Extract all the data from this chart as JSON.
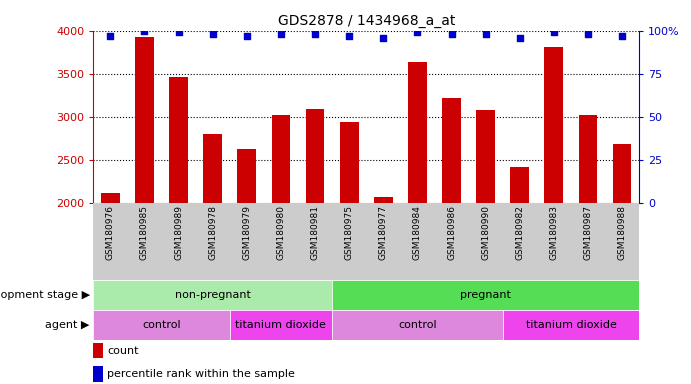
{
  "title": "GDS2878 / 1434968_a_at",
  "samples": [
    "GSM180976",
    "GSM180985",
    "GSM180989",
    "GSM180978",
    "GSM180979",
    "GSM180980",
    "GSM180981",
    "GSM180975",
    "GSM180977",
    "GSM180984",
    "GSM180986",
    "GSM180990",
    "GSM180982",
    "GSM180983",
    "GSM180987",
    "GSM180988"
  ],
  "counts": [
    2120,
    3930,
    3460,
    2800,
    2630,
    3020,
    3090,
    2940,
    2075,
    3640,
    3220,
    3080,
    2420,
    3810,
    3020,
    2690
  ],
  "percentile_ranks": [
    97,
    100,
    99,
    98,
    97,
    98,
    98,
    97,
    96,
    99,
    98,
    98,
    96,
    99,
    98,
    97
  ],
  "bar_color": "#cc0000",
  "dot_color": "#0000cc",
  "ylim_left": [
    2000,
    4000
  ],
  "ylim_right": [
    0,
    100
  ],
  "yticks_left": [
    2000,
    2500,
    3000,
    3500,
    4000
  ],
  "yticks_right": [
    0,
    25,
    50,
    75,
    100
  ],
  "background_color": "#ffffff",
  "sample_label_bg": "#cccccc",
  "dev_stage_row": {
    "label": "development stage",
    "groups": [
      {
        "name": "non-pregnant",
        "start": 0,
        "end": 7,
        "color": "#aaeaaa"
      },
      {
        "name": "pregnant",
        "start": 7,
        "end": 16,
        "color": "#55dd55"
      }
    ]
  },
  "agent_row": {
    "label": "agent",
    "groups": [
      {
        "name": "control",
        "start": 0,
        "end": 4,
        "color": "#dd88dd"
      },
      {
        "name": "titanium dioxide",
        "start": 4,
        "end": 7,
        "color": "#ee44ee"
      },
      {
        "name": "control",
        "start": 7,
        "end": 12,
        "color": "#dd88dd"
      },
      {
        "name": "titanium dioxide",
        "start": 12,
        "end": 16,
        "color": "#ee44ee"
      }
    ]
  },
  "legend": [
    {
      "color": "#cc0000",
      "label": "count"
    },
    {
      "color": "#0000cc",
      "label": "percentile rank within the sample"
    }
  ]
}
